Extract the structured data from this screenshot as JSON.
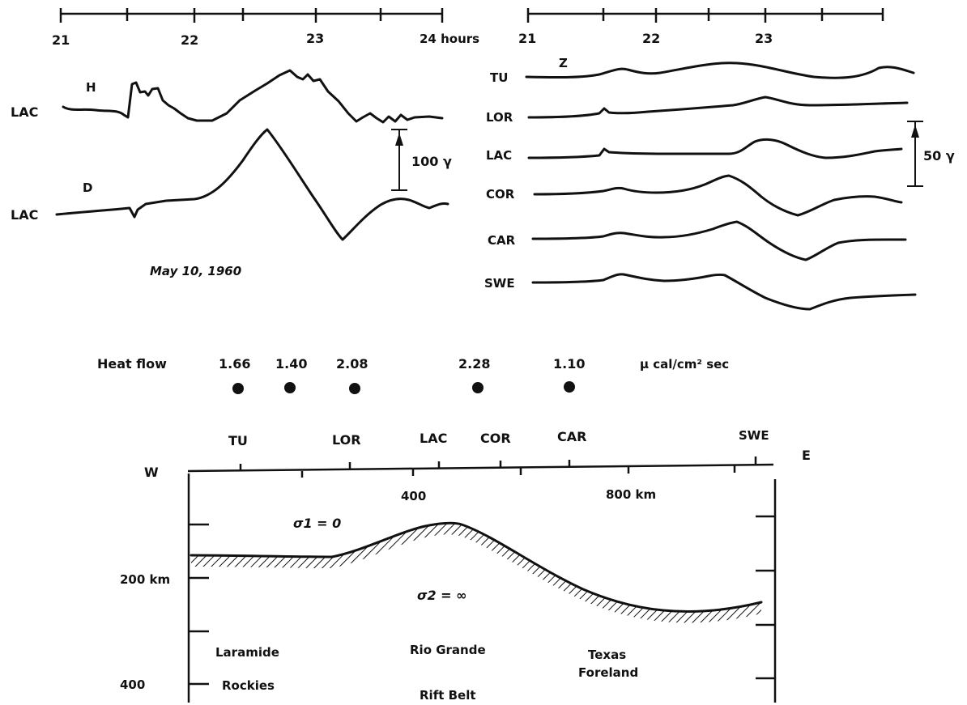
{
  "top_left_panel": {
    "time_ticks": [
      "21",
      "22",
      "23",
      "24 hours"
    ],
    "traces": [
      {
        "station": "LAC",
        "component": "H"
      },
      {
        "station": "LAC",
        "component": "D"
      }
    ],
    "scale_label": "100 γ",
    "date": "May 10, 1960"
  },
  "top_right_panel": {
    "time_ticks": [
      "21",
      "22",
      "23"
    ],
    "component": "Z",
    "stations": [
      "TU",
      "LOR",
      "LAC",
      "COR",
      "CAR",
      "SWE"
    ],
    "scale_label": "50 γ"
  },
  "heat_flow": {
    "label": "Heat flow",
    "values": [
      "1.66",
      "1.40",
      "2.08",
      "2.28",
      "1.10"
    ],
    "unit": "μ cal/cm² sec"
  },
  "cross_section": {
    "west_label": "W",
    "east_label": "E",
    "stations": [
      "TU",
      "LOR",
      "LAC",
      "COR",
      "CAR",
      "SWE"
    ],
    "distance_labels": [
      "400",
      "800 km"
    ],
    "depth_labels": [
      "200 km",
      "400"
    ],
    "sigma1": "σ1 = 0",
    "sigma2": "σ2 = ∞",
    "regions": [
      {
        "line1": "Laramide",
        "line2": "Rockies"
      },
      {
        "line1": "Rio Grande",
        "line2": "Rift Belt"
      },
      {
        "line1": "Texas",
        "line2": "Foreland"
      }
    ]
  }
}
